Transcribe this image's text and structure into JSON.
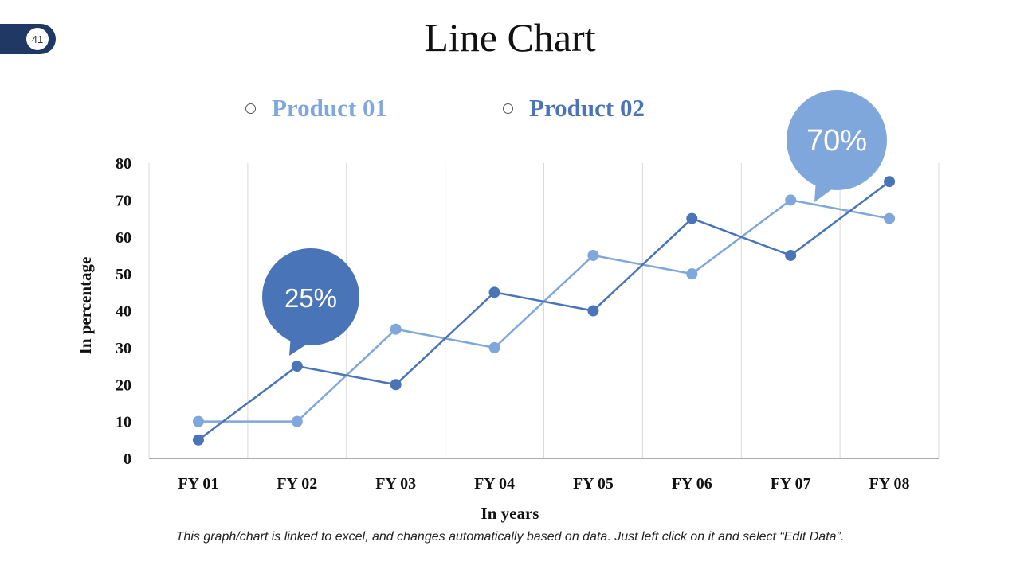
{
  "slide_number": "41",
  "title": "Line Chart",
  "note": "This graph/chart is linked to excel, and changes automatically based on data. Just left click on it and select “Edit Data”.",
  "colors": {
    "product01": "#7fa7db",
    "product02": "#4a74b8",
    "badge": "#1f3864"
  },
  "chart_data": {
    "type": "line",
    "title": "Line Chart",
    "xlabel": "In years",
    "ylabel": "In percentage",
    "categories": [
      "FY 01",
      "FY 02",
      "FY 03",
      "FY 04",
      "FY 05",
      "FY 06",
      "FY 07",
      "FY 08"
    ],
    "ylim": [
      0,
      80
    ],
    "yticks": [
      "0",
      "10",
      "20",
      "30",
      "40",
      "50",
      "60",
      "70",
      "80"
    ],
    "series": [
      {
        "name": "Product 01",
        "values": [
          10,
          10,
          35,
          30,
          55,
          50,
          70,
          65
        ]
      },
      {
        "name": "Product 02",
        "values": [
          5,
          25,
          20,
          45,
          40,
          65,
          55,
          75
        ]
      }
    ],
    "legend": "top",
    "annotations": [
      {
        "text": "25%",
        "series": "Product 02",
        "category": "FY 02"
      },
      {
        "text": "70%",
        "series": "Product 01",
        "category": "FY 07"
      }
    ]
  }
}
